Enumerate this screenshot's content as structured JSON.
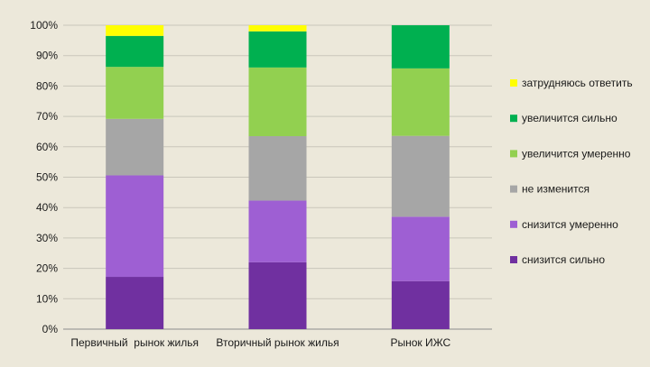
{
  "chart_data": {
    "type": "bar",
    "stacked": true,
    "categories": [
      "Первичный  рынок жилья",
      "Вторичный рынок жилья",
      "Рынок ИЖС"
    ],
    "ylim": [
      0,
      100
    ],
    "yticks": [
      "0%",
      "10%",
      "20%",
      "30%",
      "40%",
      "50%",
      "60%",
      "70%",
      "80%",
      "90%",
      "100%"
    ],
    "grid": true,
    "legend_position": "right",
    "series": [
      {
        "name": "снизится сильно",
        "color": "#7030a0",
        "values": [
          17.2,
          22.0,
          15.8
        ]
      },
      {
        "name": "снизится умеренно",
        "color": "#9e5fd3",
        "values": [
          33.4,
          20.3,
          21.2
        ]
      },
      {
        "name": "не изменится",
        "color": "#a6a6a6",
        "values": [
          18.6,
          21.2,
          26.6
        ]
      },
      {
        "name": "увеличится умеренно",
        "color": "#92d050",
        "values": [
          17.1,
          22.6,
          22.2
        ]
      },
      {
        "name": "увеличится сильно",
        "color": "#00b050",
        "values": [
          10.2,
          11.9,
          14.2
        ]
      },
      {
        "name": "затрудняюсь ответить",
        "color": "#ffff00",
        "values": [
          3.5,
          2.0,
          0
        ]
      }
    ]
  }
}
